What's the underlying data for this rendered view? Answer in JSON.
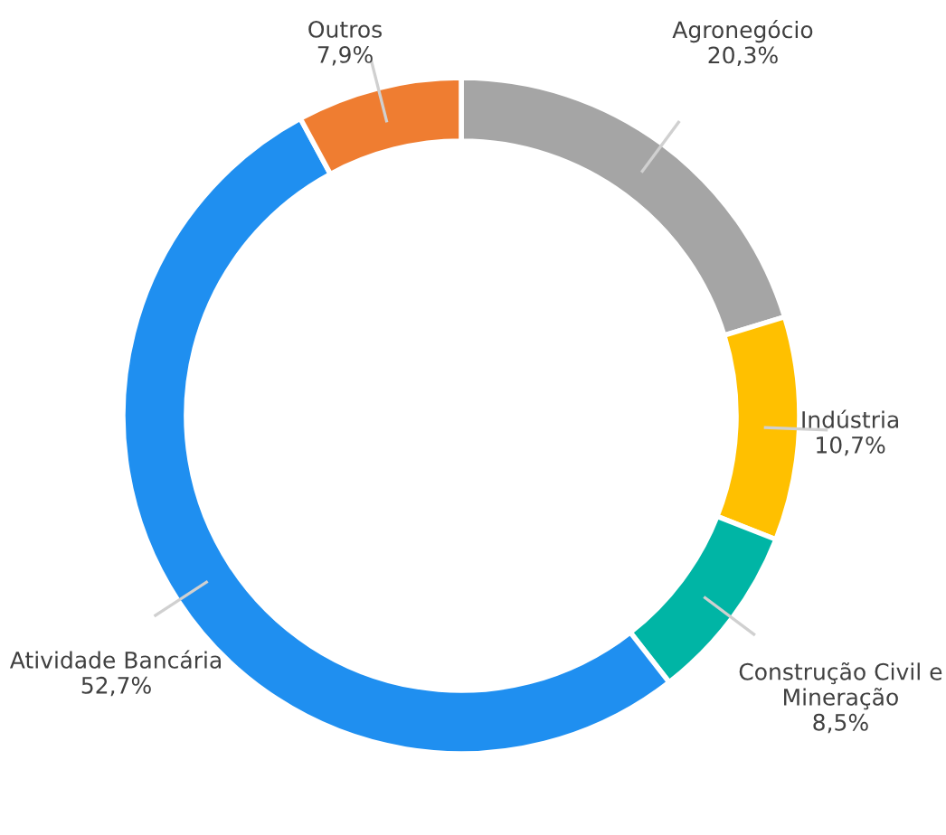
{
  "chart_data": {
    "type": "donut",
    "categories": [
      "Agronegócio",
      "Indústria",
      "Construção Civil e Mineração",
      "Atividade Bancária",
      "Outros"
    ],
    "values": [
      20.3,
      10.7,
      8.5,
      52.7,
      7.9
    ],
    "value_labels": [
      "20,3%",
      "10,7%",
      "8,5%",
      "52,7%",
      "7,9%"
    ],
    "colors": [
      "#a5a5a5",
      "#ffc000",
      "#00b5a5",
      "#1f8ff0",
      "#ef7d31"
    ],
    "legend": false
  }
}
